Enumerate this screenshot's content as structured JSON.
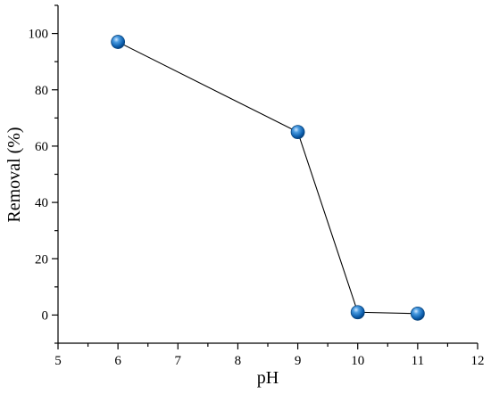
{
  "chart_data": {
    "type": "line",
    "xlabel": "pH",
    "ylabel": "Removal (%)",
    "xlim": [
      5,
      12
    ],
    "ylim": [
      -10,
      110
    ],
    "x_ticks": [
      5,
      6,
      7,
      8,
      9,
      10,
      11,
      12
    ],
    "y_ticks": [
      0,
      20,
      40,
      60,
      80,
      100
    ],
    "x_minor_ticks": [
      5.5,
      6.5,
      7.5,
      8.5,
      9.5,
      10.5,
      11.5
    ],
    "y_minor_ticks": [
      -10,
      10,
      30,
      50,
      70,
      90,
      110
    ],
    "grid": false,
    "series": [
      {
        "x": [
          6,
          9,
          10,
          11
        ],
        "y": [
          97,
          65,
          1,
          0.5
        ],
        "marker_color": "#1f77b4",
        "line_color": "#000000"
      }
    ]
  }
}
